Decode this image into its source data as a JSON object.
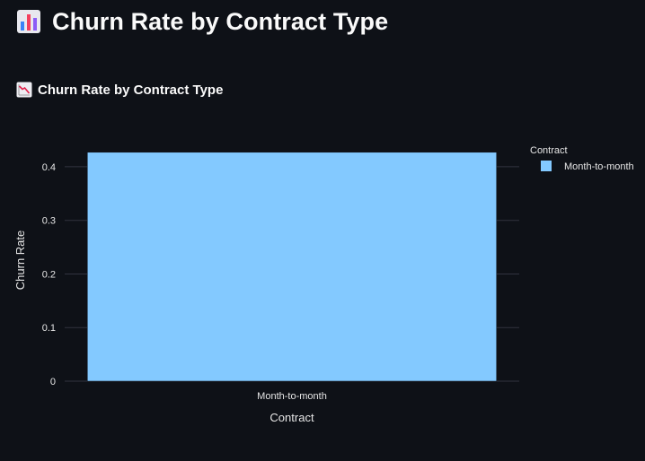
{
  "page": {
    "title": "Churn Rate by Contract Type",
    "title_icon": "bar-chart-icon"
  },
  "section": {
    "title": "Churn Rate by Contract Type",
    "icon": "chart-decreasing-icon"
  },
  "chart_data": {
    "type": "bar",
    "categories": [
      "Month-to-month"
    ],
    "values": [
      0.427
    ],
    "xlabel": "Contract",
    "ylabel": "Churn Rate",
    "ylim": [
      0,
      0.43
    ],
    "yticks": [
      0,
      0.1,
      0.2,
      0.3,
      0.4
    ],
    "ytick_labels": [
      "0",
      "0.1",
      "0.2",
      "0.3",
      "0.4"
    ],
    "grid": true,
    "legend": {
      "title": "Contract",
      "placement": "top-right",
      "items": [
        {
          "name": "Month-to-month",
          "color": "#83c9ff"
        }
      ]
    },
    "colors": {
      "bar": "#83c9ff",
      "grid": "#31333f",
      "background": "#0e1117"
    }
  }
}
